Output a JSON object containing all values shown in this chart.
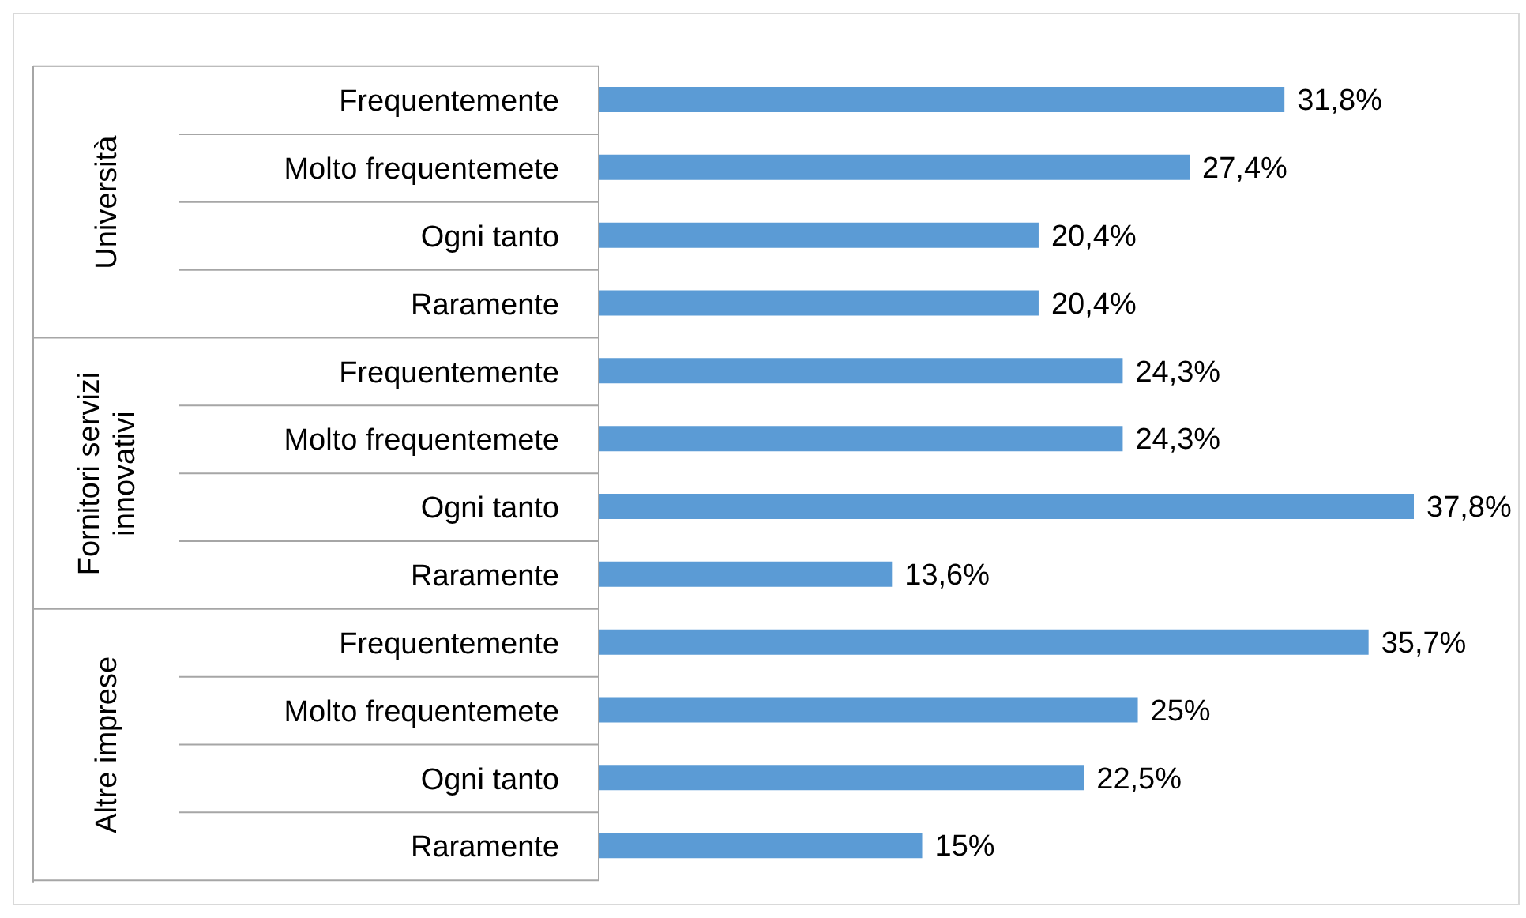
{
  "chart_data": {
    "type": "bar",
    "orientation": "horizontal",
    "categories": [
      "Frequentemente",
      "Molto frequentemete",
      "Ogni tanto",
      "Raramente",
      "Frequentemente",
      "Molto frequentemete",
      "Ogni tanto",
      "Raramente",
      "Frequentemente",
      "Molto frequentemete",
      "Ogni tanto",
      "Raramente"
    ],
    "values": [
      31.8,
      27.4,
      20.4,
      20.4,
      24.3,
      24.3,
      37.8,
      13.6,
      35.7,
      25,
      22.5,
      15
    ],
    "value_labels": [
      "31,8%",
      "27,4%",
      "20,4%",
      "20,4%",
      "24,3%",
      "24,3%",
      "37,8%",
      "13,6%",
      "35,7%",
      "25%",
      "22,5%",
      "15%"
    ],
    "color": "#5b9bd5",
    "annotations": [
      "Università",
      "Fornitori servizi innovativi",
      "Altre imprese"
    ]
  }
}
